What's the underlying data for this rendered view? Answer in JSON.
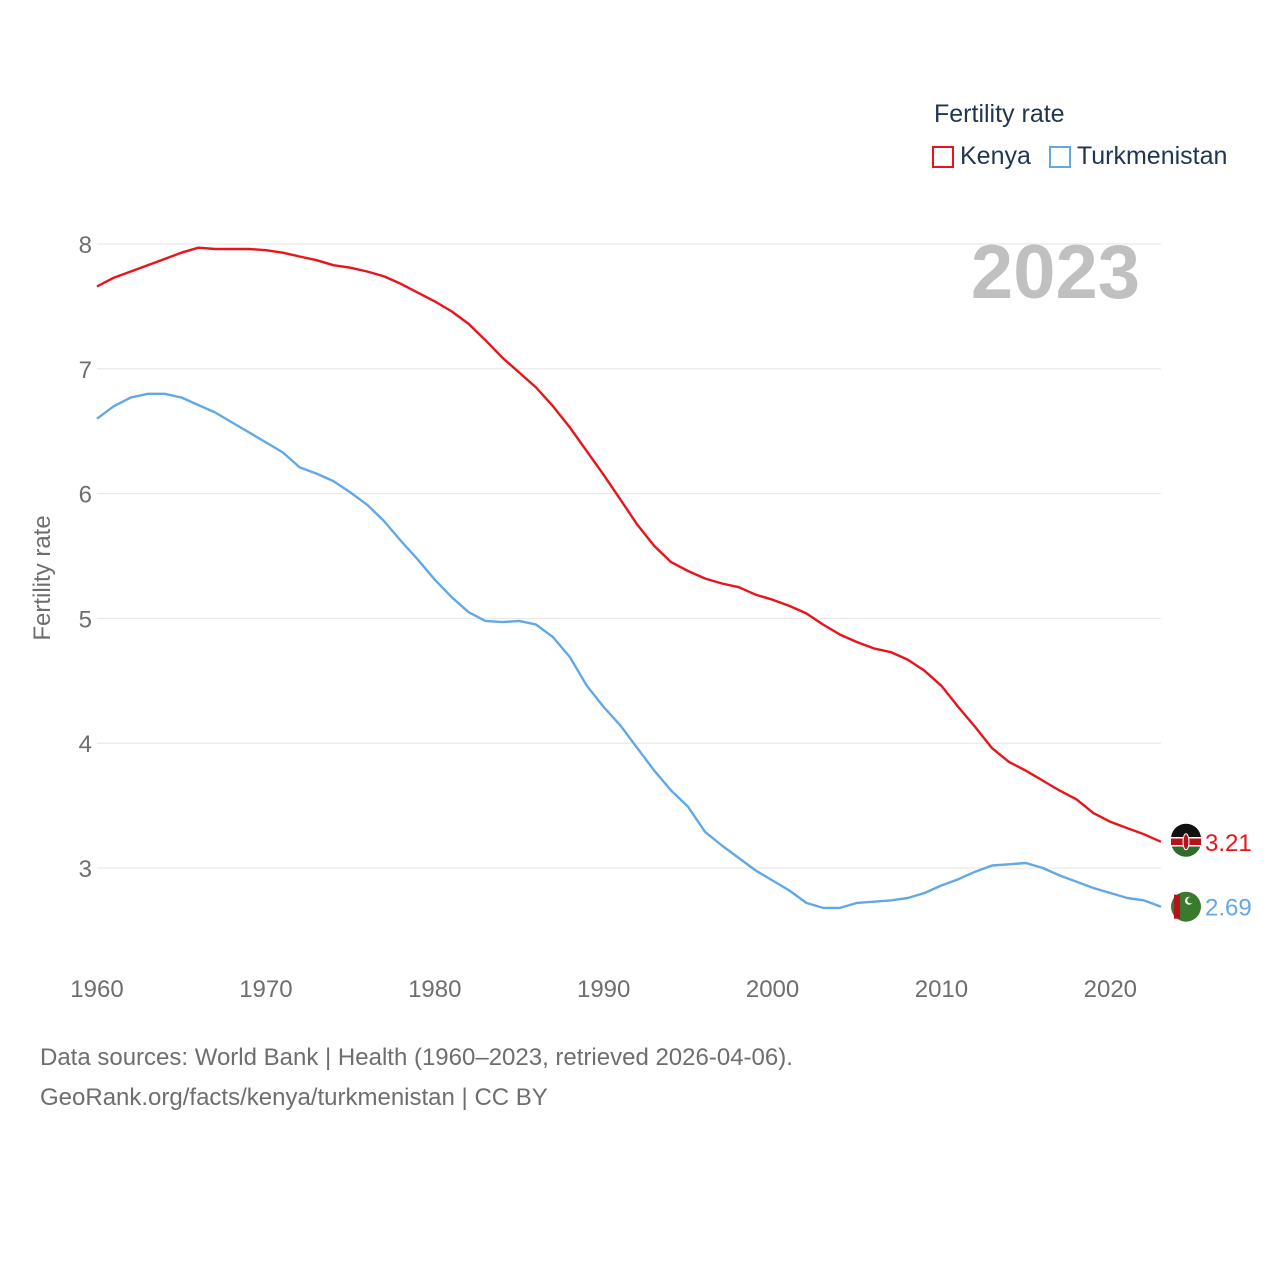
{
  "legend": {
    "title": "Fertility rate",
    "items": [
      "Kenya",
      "Turkmenistan"
    ]
  },
  "year_label": "2023",
  "footer": {
    "line1": "Data sources: World Bank | Health (1960–2023, retrieved 2026-04-06).",
    "line2": "GeoRank.org/facts/kenya/turkmenistan | CC BY"
  },
  "colors": {
    "kenya": "#e8141b",
    "turkmenistan": "#62a8e5",
    "grid": "#e6e6e6",
    "axis_text": "#6e6e6e"
  },
  "chart_data": {
    "type": "line",
    "title": "",
    "xlabel": "",
    "ylabel": "Fertility rate",
    "xlim": [
      1960,
      2023
    ],
    "ylim": [
      2.4,
      8.1
    ],
    "yticks": [
      3,
      4,
      5,
      6,
      7,
      8
    ],
    "xticks": [
      1960,
      1970,
      1980,
      1990,
      2000,
      2010,
      2020
    ],
    "x": [
      1960,
      1961,
      1962,
      1963,
      1964,
      1965,
      1966,
      1967,
      1968,
      1969,
      1970,
      1971,
      1972,
      1973,
      1974,
      1975,
      1976,
      1977,
      1978,
      1979,
      1980,
      1981,
      1982,
      1983,
      1984,
      1985,
      1986,
      1987,
      1988,
      1989,
      1990,
      1991,
      1992,
      1993,
      1994,
      1995,
      1996,
      1997,
      1998,
      1999,
      2000,
      2001,
      2002,
      2003,
      2004,
      2005,
      2006,
      2007,
      2008,
      2009,
      2010,
      2011,
      2012,
      2013,
      2014,
      2015,
      2016,
      2017,
      2018,
      2019,
      2020,
      2021,
      2022,
      2023
    ],
    "series": [
      {
        "name": "Kenya",
        "color": "#e8141b",
        "end_label": "3.21",
        "values": [
          7.66,
          7.73,
          7.78,
          7.83,
          7.88,
          7.93,
          7.97,
          7.96,
          7.96,
          7.96,
          7.95,
          7.93,
          7.9,
          7.87,
          7.83,
          7.81,
          7.78,
          7.74,
          7.68,
          7.61,
          7.54,
          7.46,
          7.36,
          7.23,
          7.09,
          6.97,
          6.85,
          6.7,
          6.53,
          6.34,
          6.15,
          5.95,
          5.75,
          5.58,
          5.45,
          5.38,
          5.32,
          5.28,
          5.25,
          5.19,
          5.15,
          5.1,
          5.04,
          4.95,
          4.87,
          4.81,
          4.76,
          4.73,
          4.67,
          4.58,
          4.46,
          4.29,
          4.13,
          3.96,
          3.85,
          3.78,
          3.7,
          3.62,
          3.55,
          3.44,
          3.37,
          3.32,
          3.27,
          3.21
        ]
      },
      {
        "name": "Turkmenistan",
        "color": "#62a8e5",
        "end_label": "2.69",
        "values": [
          6.6,
          6.7,
          6.77,
          6.8,
          6.8,
          6.77,
          6.71,
          6.65,
          6.57,
          6.49,
          6.41,
          6.33,
          6.21,
          6.16,
          6.1,
          6.01,
          5.91,
          5.78,
          5.62,
          5.47,
          5.31,
          5.17,
          5.05,
          4.98,
          4.97,
          4.98,
          4.95,
          4.85,
          4.69,
          4.46,
          4.29,
          4.14,
          3.96,
          3.78,
          3.62,
          3.49,
          3.29,
          3.18,
          3.08,
          2.98,
          2.9,
          2.82,
          2.72,
          2.68,
          2.68,
          2.72,
          2.73,
          2.74,
          2.76,
          2.8,
          2.86,
          2.91,
          2.97,
          3.02,
          3.03,
          3.04,
          3.0,
          2.94,
          2.89,
          2.84,
          2.8,
          2.76,
          2.74,
          2.69
        ]
      }
    ]
  }
}
